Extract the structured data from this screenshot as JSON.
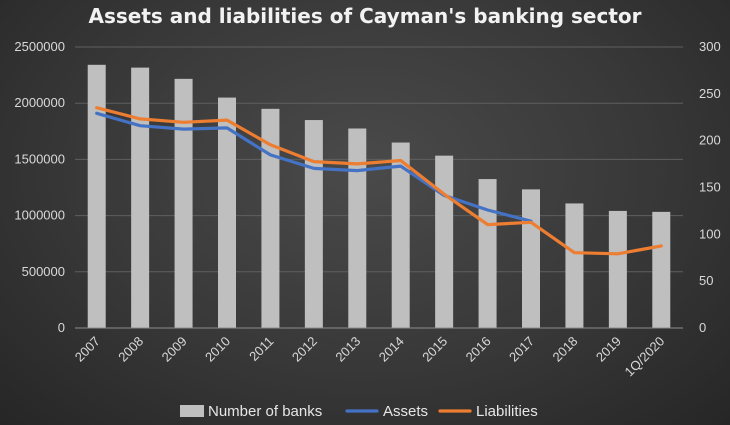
{
  "chart_data": {
    "type": "bar",
    "title": "Assets and liabilities of Cayman's banking sector",
    "categories": [
      "2007",
      "2008",
      "2009",
      "2010",
      "2011",
      "2012",
      "2013",
      "2014",
      "2015",
      "2016",
      "2017",
      "2018",
      "2019",
      "1Q/2020"
    ],
    "series": [
      {
        "name": "Number of banks",
        "type": "bar",
        "axis": "right",
        "color": "#bfbfbf",
        "values": [
          281,
          278,
          266,
          246,
          234,
          222,
          213,
          198,
          184,
          159,
          148,
          133,
          125,
          124
        ]
      },
      {
        "name": "Assets",
        "type": "line",
        "axis": "left",
        "color": "#4472c4",
        "values": [
          1910000,
          1800000,
          1770000,
          1780000,
          1540000,
          1420000,
          1400000,
          1440000,
          1180000,
          1050000,
          950000,
          null,
          null,
          null
        ]
      },
      {
        "name": "Liabilities",
        "type": "line",
        "axis": "left",
        "color": "#ed7d31",
        "values": [
          1960000,
          1860000,
          1830000,
          1850000,
          1630000,
          1480000,
          1460000,
          1490000,
          1190000,
          920000,
          940000,
          670000,
          660000,
          730000
        ]
      }
    ],
    "y_left": {
      "min": 0,
      "max": 2500000,
      "ticks": [
        0,
        500000,
        1000000,
        1500000,
        2000000,
        2500000
      ],
      "tick_labels": [
        "0",
        "500000",
        "1000000",
        "1500000",
        "2000000",
        "2500000"
      ]
    },
    "y_right": {
      "min": 0,
      "max": 300,
      "ticks": [
        0,
        50,
        100,
        150,
        200,
        250,
        300
      ],
      "tick_labels": [
        "0",
        "50",
        "100",
        "150",
        "200",
        "250",
        "300"
      ]
    },
    "grid": true,
    "legend_position": "bottom"
  }
}
